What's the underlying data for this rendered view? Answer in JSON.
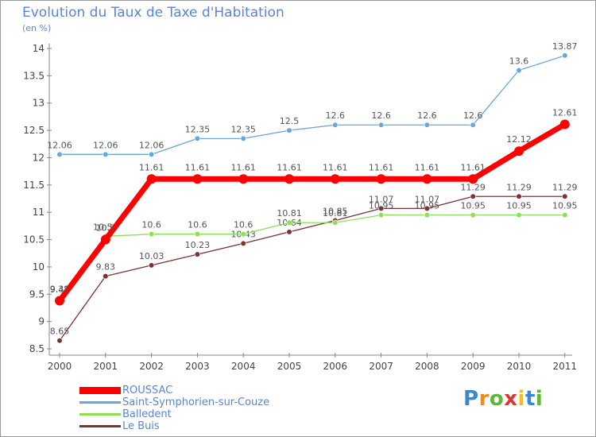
{
  "chart_data": {
    "type": "line",
    "title": "Evolution du Taux de Taxe d'Habitation",
    "subtitle": "(en %)",
    "x": [
      "2000",
      "2001",
      "2002",
      "2003",
      "2004",
      "2005",
      "2006",
      "2007",
      "2008",
      "2009",
      "2010",
      "2011"
    ],
    "ylim": [
      8.5,
      14
    ],
    "yticks": [
      "8.5",
      "9",
      "9.5",
      "10",
      "10.5",
      "11",
      "11.5",
      "12",
      "12.5",
      "13",
      "13.5",
      "14"
    ],
    "grid": false,
    "legend_position": "bottom-left",
    "series": [
      {
        "name": "ROUSSAC",
        "color": "#ff0000",
        "values": [
          9.38,
          10.5,
          11.61,
          11.61,
          11.61,
          11.61,
          11.61,
          11.61,
          11.61,
          11.61,
          12.12,
          12.61
        ],
        "labels": [
          "9.38",
          "10.5",
          "11.61",
          "11.61",
          "11.61",
          "11.61",
          "11.61",
          "11.61",
          "11.61",
          "11.61",
          "12.12",
          "12.61"
        ]
      },
      {
        "name": "Saint-Symphorien-sur-Couze",
        "color": "#6aa6d8",
        "values": [
          12.06,
          12.06,
          12.06,
          12.35,
          12.35,
          12.5,
          12.6,
          12.6,
          12.6,
          12.6,
          13.6,
          13.87
        ],
        "labels": [
          "12.06",
          "12.06",
          "12.06",
          "12.35",
          "12.35",
          "12.5",
          "12.6",
          "12.6",
          "12.6",
          "12.6",
          "13.6",
          "13.87"
        ]
      },
      {
        "name": "Balledent",
        "color": "#8ede58",
        "values": [
          9.42,
          10.56,
          10.6,
          10.6,
          10.6,
          10.81,
          10.81,
          10.95,
          10.95,
          10.95,
          10.95,
          10.95
        ],
        "labels": [
          "9.42",
          "10.56",
          "10.6",
          "10.6",
          "10.6",
          "10.81",
          "10.81",
          "10.95",
          "10.95",
          "10.95",
          "10.95",
          "10.95"
        ]
      },
      {
        "name": "Le Buis",
        "color": "#7a3232",
        "values": [
          8.65,
          9.83,
          10.03,
          10.23,
          10.43,
          10.64,
          10.85,
          11.07,
          11.07,
          11.29,
          11.29,
          11.29
        ],
        "labels": [
          "8.65",
          "9.83",
          "10.03",
          "10.23",
          "10.43",
          "10.64",
          "10.85",
          "11.07",
          "11.07",
          "11.29",
          "11.29",
          "11.29"
        ]
      }
    ]
  },
  "logo": {
    "letters": [
      "P",
      "r",
      "o",
      "x",
      "i",
      "t",
      "i"
    ],
    "colors": [
      "#3a88d0",
      "#f08a1c",
      "#5cb83a",
      "#e0342c",
      "#f0c020",
      "#3a88d0",
      "#5cb83a"
    ]
  }
}
